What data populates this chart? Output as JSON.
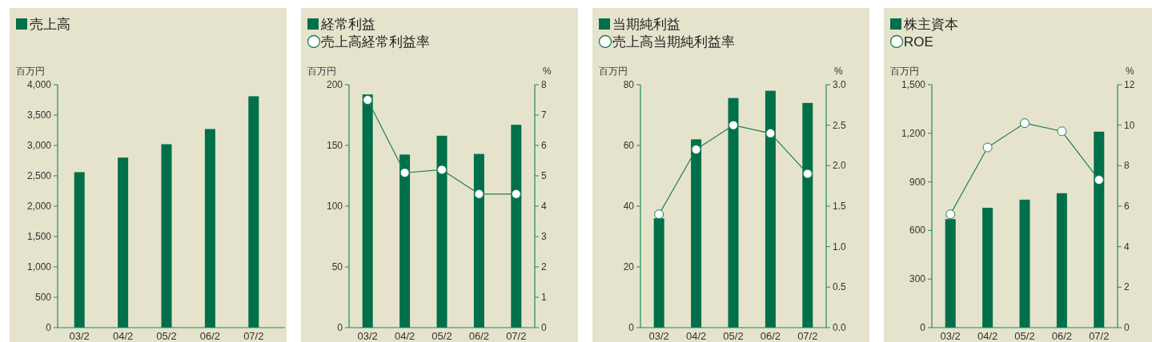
{
  "chart_data": [
    {
      "type": "bar",
      "categories": [
        "03/2",
        "04/2",
        "05/2",
        "06/2",
        "07/2"
      ],
      "ylabel": "百万円",
      "legend": "top left",
      "grid": false,
      "series": [
        {
          "name": "売上高",
          "color": "#00704a",
          "values": [
            2560,
            2800,
            3020,
            3270,
            3810
          ]
        }
      ],
      "ylim": [
        0,
        4000
      ],
      "yticks": [
        0,
        500,
        {
          "value": 1000,
          "label": "1,000"
        },
        {
          "value": 1500,
          "label": "1,500"
        },
        {
          "value": 2000,
          "label": "2,000"
        },
        {
          "value": 2500,
          "label": "2,500"
        },
        {
          "value": 3000,
          "label": "3,000"
        },
        {
          "value": 3500,
          "label": "3,500"
        },
        {
          "value": 4000,
          "label": "4,000"
        }
      ]
    },
    {
      "type": "bar",
      "categories": [
        "03/2",
        "04/2",
        "05/2",
        "06/2",
        "07/2"
      ],
      "ylabel": "百万円",
      "y2label": "%",
      "legend": "top left",
      "grid": false,
      "series": [
        {
          "name": "経常利益",
          "color": "#00704a",
          "values": [
            192,
            142.5,
            158,
            143,
            167
          ]
        },
        {
          "name": "売上高経常利益率",
          "type": "line",
          "axis": "y2",
          "marker": "circle",
          "color": "#1f7f50",
          "values": [
            7.5,
            5.1,
            5.2,
            4.4,
            4.4
          ]
        }
      ],
      "ylim": [
        0,
        200
      ],
      "yticks": [
        0,
        50,
        100,
        150,
        200
      ],
      "y2lim": [
        0,
        8
      ],
      "y2ticks": [
        0,
        1,
        2,
        3,
        4,
        5,
        6,
        7,
        8
      ]
    },
    {
      "type": "bar",
      "categories": [
        "03/2",
        "04/2",
        "05/2",
        "06/2",
        "07/2"
      ],
      "ylabel": "百万円",
      "y2label": "%",
      "legend": "top left",
      "grid": false,
      "series": [
        {
          "name": "当期純利益",
          "color": "#00704a",
          "values": [
            36,
            62,
            75.6,
            78,
            74
          ]
        },
        {
          "name": "売上高当期純利益率",
          "type": "line",
          "axis": "y2",
          "marker": "circle",
          "color": "#1f7f50",
          "values": [
            1.4,
            2.2,
            2.5,
            2.4,
            1.9
          ]
        }
      ],
      "ylim": [
        0,
        80
      ],
      "yticks": [
        0,
        20,
        40,
        60,
        80
      ],
      "y2lim": [
        0,
        3
      ],
      "y2ticks": [
        {
          "value": 0,
          "label": "0.0"
        },
        0.5,
        {
          "value": 1,
          "label": "1.0"
        },
        1.5,
        {
          "value": 2,
          "label": "2.0"
        },
        2.5,
        {
          "value": 3,
          "label": "3.0"
        }
      ]
    },
    {
      "type": "bar",
      "categories": [
        "03/2",
        "04/2",
        "05/2",
        "06/2",
        "07/2"
      ],
      "ylabel": "百万円",
      "y2label": "%",
      "legend": "top left",
      "grid": false,
      "series": [
        {
          "name": "株主資本",
          "color": "#00704a",
          "values": [
            670,
            740,
            790,
            830,
            1210
          ]
        },
        {
          "name": "ROE",
          "type": "line",
          "axis": "y2",
          "marker": "circle",
          "color": "#1f7f50",
          "values": [
            5.6,
            8.9,
            10.1,
            9.7,
            7.3
          ]
        }
      ],
      "ylim": [
        0,
        1500
      ],
      "yticks": [
        0,
        300,
        600,
        900,
        {
          "value": 1200,
          "label": "1,200"
        },
        {
          "value": 1500,
          "label": "1,500"
        }
      ],
      "y2lim": [
        0,
        12
      ],
      "y2ticks": [
        0,
        2,
        4,
        6,
        8,
        10,
        12
      ]
    }
  ]
}
